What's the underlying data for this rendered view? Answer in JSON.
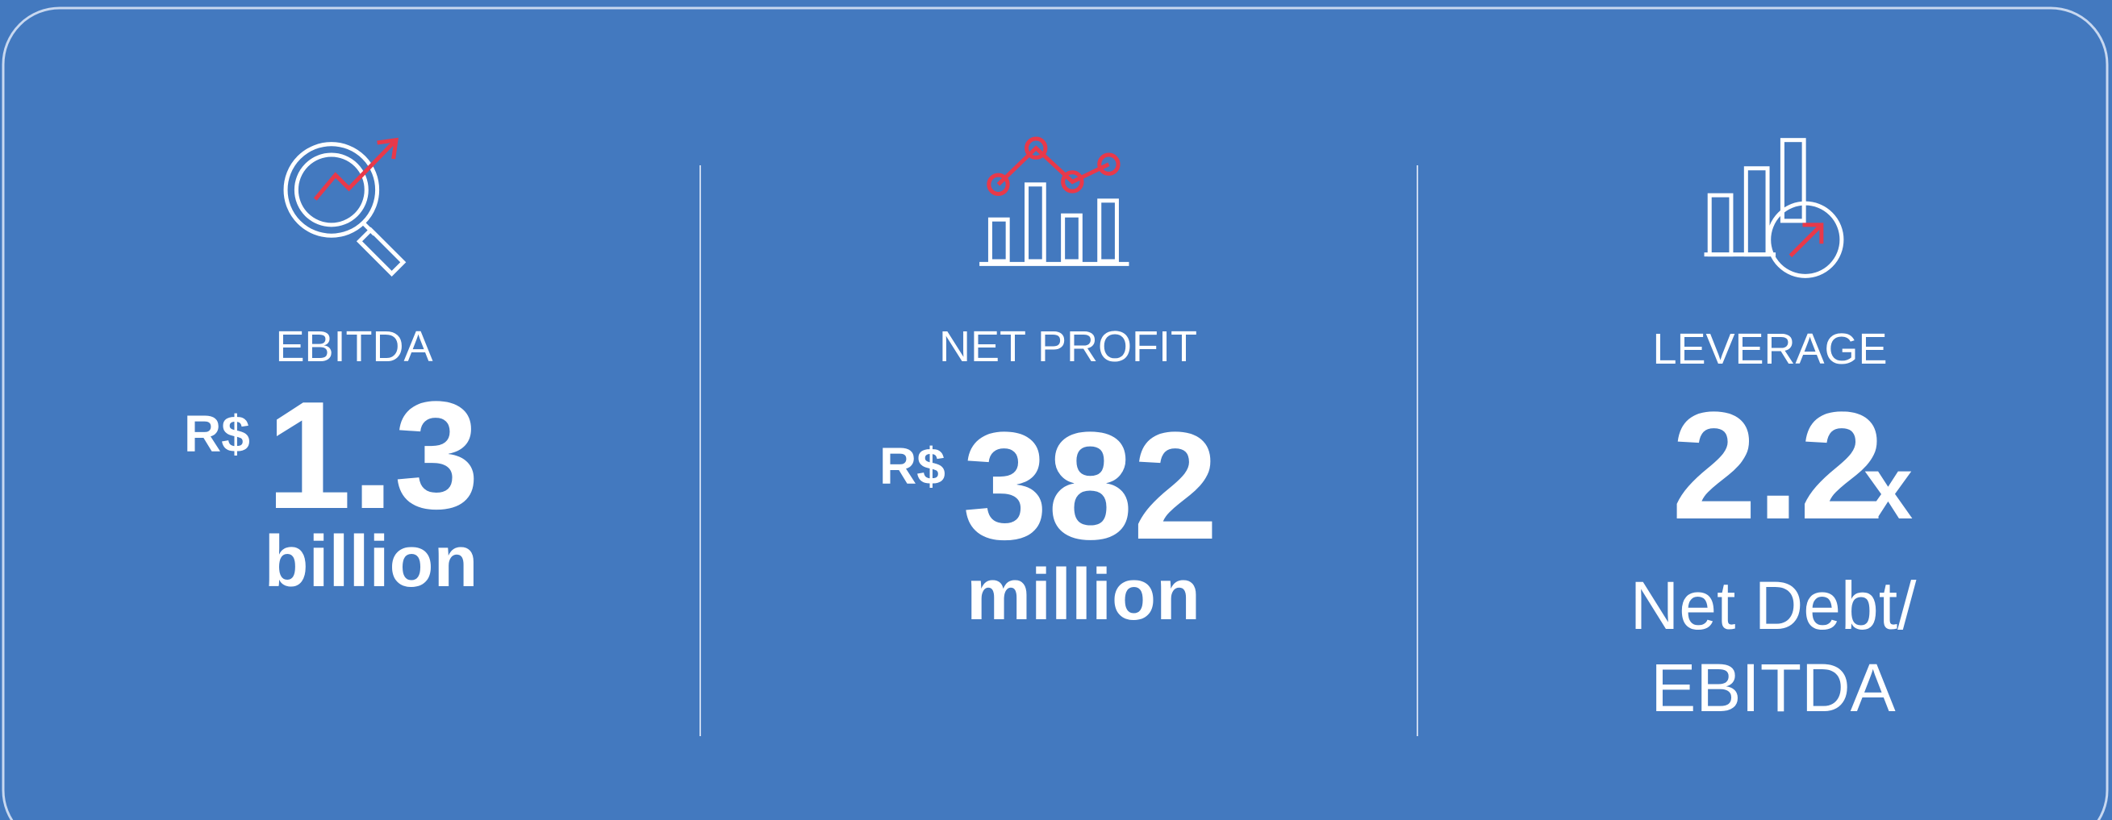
{
  "cards": [
    {
      "label": "EBITDA",
      "currency": "R$",
      "value": "1.3",
      "unit": "billion"
    },
    {
      "label": "NET PROFIT",
      "currency": "R$",
      "value": "382",
      "unit": "million"
    },
    {
      "label": "LEVERAGE",
      "value": "2.2",
      "suffix": "x",
      "note": [
        "Net Debt/",
        "EBITDA"
      ]
    }
  ]
}
